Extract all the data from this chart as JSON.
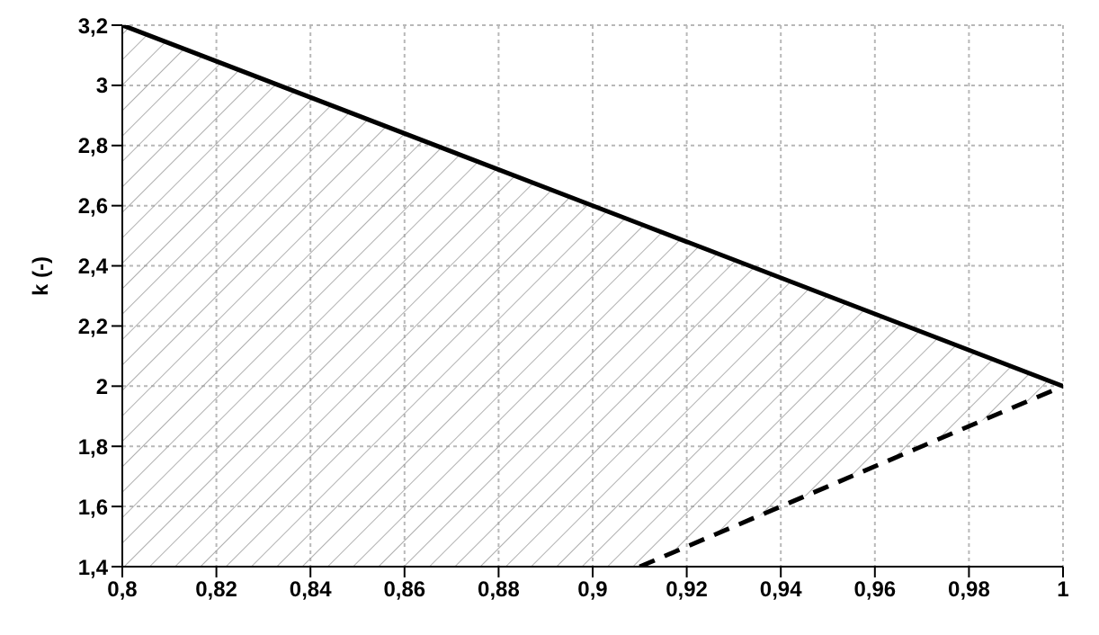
{
  "chart_data": {
    "type": "line",
    "ylabel": "k (-)",
    "series": [
      {
        "color": "#000000",
        "x": [
          0.8,
          0.91,
          1
        ],
        "values": [
          3.2,
          2.54,
          2
        ],
        "lower": [
          1.4,
          1.4,
          2
        ],
        "upper": [
          3.2,
          2.54,
          2
        ],
        "line_style": "solid"
      },
      {
        "color": "#000000",
        "x": [
          0.91,
          1
        ],
        "values": [
          1.4,
          2
        ],
        "line_style": "dashed"
      }
    ],
    "xlim": [
      0.8,
      1
    ],
    "xticks": [
      {
        "value": 0.8,
        "label": "0,8"
      },
      {
        "value": 0.82,
        "label": "0,82"
      },
      {
        "value": 0.84,
        "label": "0,84"
      },
      {
        "value": 0.86,
        "label": "0,86"
      },
      {
        "value": 0.88,
        "label": "0,88"
      },
      {
        "value": 0.9,
        "label": "0,9"
      },
      {
        "value": 0.92,
        "label": "0,92"
      },
      {
        "value": 0.94,
        "label": "0,94"
      },
      {
        "value": 0.96,
        "label": "0,96"
      },
      {
        "value": 0.98,
        "label": "0,98"
      },
      1
    ],
    "ylim": [
      1.4,
      3.2
    ],
    "yticks": [
      {
        "value": 1.4,
        "label": "1,4"
      },
      {
        "value": 1.6,
        "label": "1,6"
      },
      {
        "value": 1.8,
        "label": "1,8"
      },
      2,
      {
        "value": 2.2,
        "label": "2,2"
      },
      {
        "value": 2.4,
        "label": "2,4"
      },
      {
        "value": 2.6,
        "label": "2,6"
      },
      {
        "value": 2.8,
        "label": "2,8"
      },
      3,
      {
        "value": 3.2,
        "label": "3,2"
      }
    ],
    "grid": true,
    "marker": "none"
  }
}
